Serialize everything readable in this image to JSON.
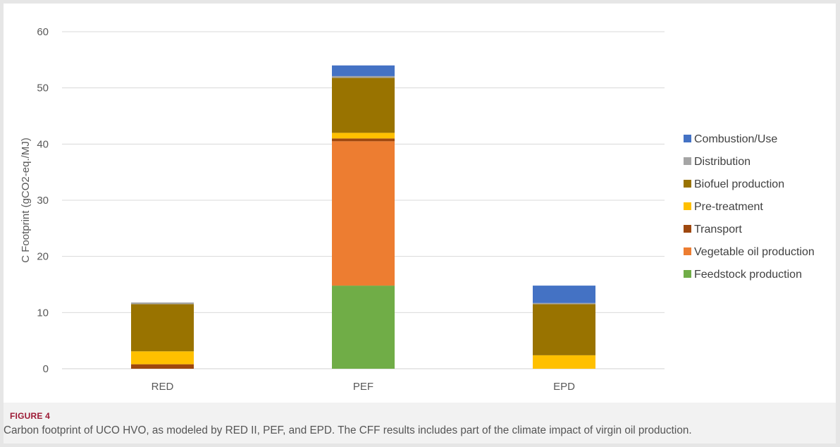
{
  "figure": {
    "label": "FIGURE 4",
    "caption": "Carbon footprint of UCO HVO, as modeled by RED II, PEF, and EPD. The CFF results includes part of the climate impact of virgin oil production."
  },
  "chart_data": {
    "type": "bar",
    "stacked": true,
    "categories": [
      "RED",
      "PEF",
      "EPD"
    ],
    "ylabel": "C Footprint (gCO2-eq./MJ)",
    "ylim": [
      0,
      60
    ],
    "yticks": [
      0,
      10,
      20,
      30,
      40,
      50,
      60
    ],
    "grid": true,
    "legend_position": "right",
    "series": [
      {
        "name": "Feedstock production",
        "color": "#70ad47",
        "values": [
          0,
          14.8,
          0
        ]
      },
      {
        "name": "Vegetable oil production",
        "color": "#ed7d31",
        "values": [
          0,
          25.7,
          0
        ]
      },
      {
        "name": "Transport",
        "color": "#9e480e",
        "values": [
          0.8,
          0.5,
          0
        ]
      },
      {
        "name": "Pre-treatment",
        "color": "#ffc000",
        "values": [
          2.3,
          1.0,
          2.4
        ]
      },
      {
        "name": "Biofuel production",
        "color": "#997300",
        "values": [
          8.4,
          9.8,
          9.1
        ]
      },
      {
        "name": "Distribution",
        "color": "#a5a5a5",
        "values": [
          0.3,
          0.3,
          0.2
        ]
      },
      {
        "name": "Combustion/Use",
        "color": "#4472c4",
        "values": [
          0,
          1.9,
          3.1
        ]
      }
    ],
    "legend_order": [
      "Combustion/Use",
      "Distribution",
      "Biofuel production",
      "Pre-treatment",
      "Transport",
      "Vegetable oil production",
      "Feedstock production"
    ]
  }
}
